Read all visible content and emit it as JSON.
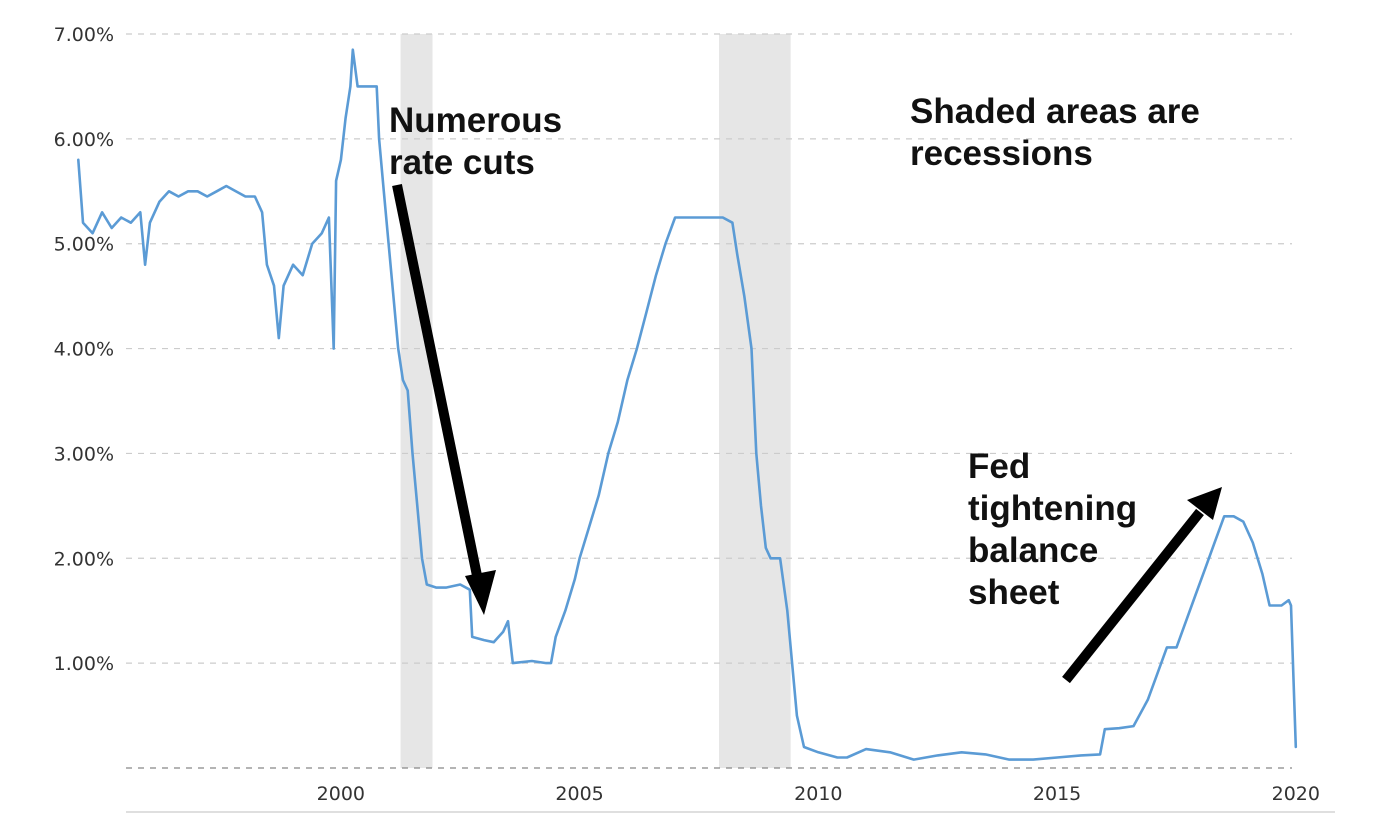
{
  "chart_data": {
    "type": "line",
    "title": "",
    "xlabel": "",
    "ylabel": "",
    "xlim": [
      1995.5,
      2019.92
    ],
    "ylim": [
      0,
      7
    ],
    "x_ticks": [
      2000,
      2005,
      2010,
      2015,
      2020
    ],
    "y_ticks": [
      1,
      2,
      3,
      4,
      5,
      6,
      7
    ],
    "y_tick_labels": [
      "1.00%",
      "2.00%",
      "3.00%",
      "4.00%",
      "5.00%",
      "6.00%",
      "7.00%"
    ],
    "grid": "horizontal dashed",
    "recessions": [
      {
        "start": 2001.25,
        "end": 2001.92
      },
      {
        "start": 2007.92,
        "end": 2009.42
      }
    ],
    "series": [
      {
        "color": "#5b9bd5",
        "points": [
          [
            1995.5,
            5.8
          ],
          [
            1995.6,
            5.2
          ],
          [
            1995.8,
            5.1
          ],
          [
            1996.0,
            5.3
          ],
          [
            1996.2,
            5.15
          ],
          [
            1996.4,
            5.25
          ],
          [
            1996.6,
            5.2
          ],
          [
            1996.8,
            5.3
          ],
          [
            1996.9,
            4.8
          ],
          [
            1997.0,
            5.2
          ],
          [
            1997.2,
            5.4
          ],
          [
            1997.4,
            5.5
          ],
          [
            1997.6,
            5.45
          ],
          [
            1997.8,
            5.5
          ],
          [
            1998.0,
            5.5
          ],
          [
            1998.2,
            5.45
          ],
          [
            1998.4,
            5.5
          ],
          [
            1998.6,
            5.55
          ],
          [
            1998.8,
            5.5
          ],
          [
            1999.0,
            5.45
          ],
          [
            1999.2,
            5.45
          ],
          [
            1999.35,
            5.3
          ],
          [
            1999.45,
            4.8
          ],
          [
            1999.6,
            4.6
          ],
          [
            1999.7,
            4.1
          ],
          [
            1999.8,
            4.6
          ],
          [
            2000.0,
            4.8
          ],
          [
            2000.2,
            4.7
          ],
          [
            2000.4,
            5.0
          ],
          [
            2000.6,
            5.1
          ],
          [
            2000.75,
            5.25
          ],
          [
            2000.85,
            4.0
          ],
          [
            2000.9,
            5.6
          ],
          [
            2001.0,
            5.8
          ],
          [
            2001.1,
            6.2
          ],
          [
            2001.2,
            6.5
          ],
          [
            2001.25,
            6.85
          ],
          [
            2001.35,
            6.5
          ],
          [
            2001.6,
            6.5
          ],
          [
            2001.75,
            6.5
          ],
          [
            2001.8,
            6.0
          ],
          [
            2001.9,
            5.5
          ],
          [
            2002.0,
            5.0
          ],
          [
            2002.1,
            4.5
          ],
          [
            2002.2,
            4.0
          ],
          [
            2002.3,
            3.7
          ],
          [
            2002.4,
            3.6
          ],
          [
            2002.5,
            3.0
          ],
          [
            2002.6,
            2.5
          ],
          [
            2002.7,
            2.0
          ],
          [
            2002.8,
            1.75
          ],
          [
            2003.0,
            1.72
          ],
          [
            2003.2,
            1.72
          ],
          [
            2003.5,
            1.75
          ],
          [
            2003.7,
            1.7
          ],
          [
            2003.75,
            1.25
          ],
          [
            2004.0,
            1.22
          ],
          [
            2004.2,
            1.2
          ],
          [
            2004.4,
            1.3
          ],
          [
            2004.5,
            1.4
          ],
          [
            2004.6,
            1.0
          ],
          [
            2005.0,
            1.02
          ],
          [
            2005.3,
            1.0
          ],
          [
            2005.4,
            1.0
          ],
          [
            2005.5,
            1.25
          ],
          [
            2005.7,
            1.5
          ],
          [
            2005.9,
            1.8
          ],
          [
            2006.0,
            2.0
          ],
          [
            2006.2,
            2.3
          ],
          [
            2006.4,
            2.6
          ],
          [
            2006.6,
            3.0
          ],
          [
            2006.8,
            3.3
          ],
          [
            2007.0,
            3.7
          ],
          [
            2007.2,
            4.0
          ],
          [
            2007.4,
            4.35
          ],
          [
            2007.6,
            4.7
          ],
          [
            2007.8,
            5.0
          ],
          [
            2008.0,
            5.25
          ],
          [
            2008.5,
            5.25
          ],
          [
            2009.0,
            5.25
          ],
          [
            2009.2,
            5.2
          ],
          [
            2009.3,
            4.9
          ],
          [
            2009.45,
            4.5
          ],
          [
            2009.6,
            4.0
          ],
          [
            2009.7,
            3.0
          ],
          [
            2009.8,
            2.5
          ],
          [
            2009.9,
            2.1
          ],
          [
            2010.0,
            2.0
          ],
          [
            2010.2,
            2.0
          ],
          [
            2010.35,
            1.5
          ],
          [
            2010.45,
            1.0
          ],
          [
            2010.55,
            0.5
          ],
          [
            2010.7,
            0.2
          ],
          [
            2011.0,
            0.15
          ],
          [
            2011.4,
            0.1
          ],
          [
            2011.6,
            0.1
          ],
          [
            2012.0,
            0.18
          ],
          [
            2012.5,
            0.15
          ],
          [
            2013.0,
            0.08
          ],
          [
            2013.5,
            0.12
          ],
          [
            2014.0,
            0.15
          ],
          [
            2014.5,
            0.13
          ],
          [
            2015.0,
            0.08
          ],
          [
            2015.5,
            0.08
          ],
          [
            2016.0,
            0.1
          ],
          [
            2016.5,
            0.12
          ],
          [
            2016.9,
            0.13
          ],
          [
            2017.0,
            0.37
          ],
          [
            2017.3,
            0.38
          ],
          [
            2017.6,
            0.4
          ],
          [
            2017.9,
            0.65
          ],
          [
            2018.1,
            0.9
          ],
          [
            2018.3,
            1.15
          ],
          [
            2018.5,
            1.15
          ],
          [
            2018.7,
            1.4
          ],
          [
            2018.9,
            1.65
          ],
          [
            2019.1,
            1.9
          ],
          [
            2019.3,
            2.15
          ],
          [
            2019.5,
            2.4
          ],
          [
            2019.7,
            2.4
          ],
          [
            2019.9,
            2.35
          ],
          [
            2020.1,
            2.15
          ],
          [
            2020.3,
            1.85
          ],
          [
            2020.45,
            1.55
          ],
          [
            2020.7,
            1.55
          ],
          [
            2020.85,
            1.6
          ],
          [
            2020.9,
            1.55
          ],
          [
            2021.0,
            0.2
          ]
        ]
      }
    ]
  },
  "annotations": {
    "cuts": "Numerous\nrate cuts",
    "recessions": "Shaded areas are\nrecessions",
    "fed": "Fed\ntightening\nbalance\nsheet"
  },
  "x_tick_labels": [
    "2000",
    "2005",
    "2010",
    "2015",
    "2020"
  ]
}
